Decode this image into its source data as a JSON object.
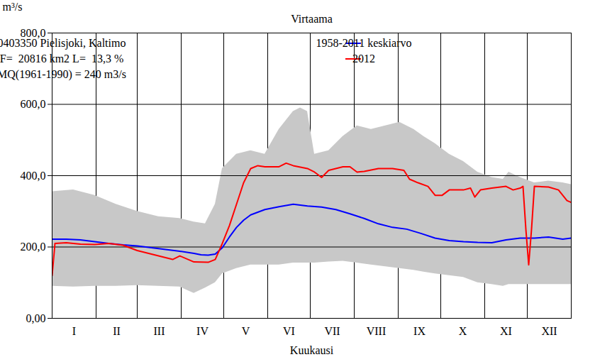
{
  "chart_data": {
    "type": "line",
    "title": "Virtaama",
    "x_label": "Kuukausi",
    "y_label": "m³/s",
    "annotations": [
      "0403350 Pielisjoki, Kaltimo",
      "F=  20816 km2 L=  13,3 %",
      "MQ(1961-1990) = 240 m3/s"
    ],
    "xlim": [
      0,
      366
    ],
    "xticks": [
      {
        "value": 15.5,
        "label": "I"
      },
      {
        "value": 45.5,
        "label": "II"
      },
      {
        "value": 75.5,
        "label": "III"
      },
      {
        "value": 106,
        "label": "IV"
      },
      {
        "value": 136.5,
        "label": "V"
      },
      {
        "value": 167,
        "label": "VI"
      },
      {
        "value": 197.5,
        "label": "VII"
      },
      {
        "value": 228.5,
        "label": "VIII"
      },
      {
        "value": 259,
        "label": "IX"
      },
      {
        "value": 289.5,
        "label": "X"
      },
      {
        "value": 320,
        "label": "XI"
      },
      {
        "value": 350.5,
        "label": "XII"
      }
    ],
    "month_bounds": [
      0,
      31,
      60,
      91,
      121,
      152,
      182,
      213,
      244,
      274,
      305,
      335,
      366
    ],
    "ylim": [
      0,
      800
    ],
    "yticks": [
      {
        "value": 0,
        "label": "0,00"
      },
      {
        "value": 200,
        "label": "200,0"
      },
      {
        "value": 400,
        "label": "400,0"
      },
      {
        "value": 600,
        "label": "600,0"
      },
      {
        "value": 800,
        "label": "800,0"
      }
    ],
    "grid": true,
    "legend": "top-right",
    "band": {
      "color": "#c8c8c8",
      "x": [
        0,
        15,
        30,
        45,
        60,
        75,
        90,
        100,
        108,
        115,
        120,
        130,
        140,
        150,
        160,
        170,
        175,
        180,
        185,
        195,
        205,
        215,
        225,
        235,
        245,
        255,
        262,
        270,
        280,
        290,
        300,
        310,
        318,
        322,
        330,
        340,
        350,
        360,
        366
      ],
      "lower": [
        90,
        88,
        90,
        90,
        92,
        90,
        88,
        70,
        85,
        100,
        125,
        140,
        150,
        150,
        150,
        155,
        155,
        155,
        155,
        158,
        160,
        155,
        150,
        145,
        140,
        135,
        130,
        125,
        120,
        115,
        100,
        95,
        90,
        95,
        95,
        95,
        95,
        95,
        95
      ],
      "upper": [
        355,
        360,
        345,
        320,
        300,
        285,
        280,
        270,
        265,
        320,
        420,
        460,
        470,
        460,
        530,
        580,
        590,
        580,
        460,
        470,
        510,
        540,
        530,
        540,
        550,
        530,
        510,
        490,
        460,
        440,
        410,
        395,
        390,
        410,
        395,
        380,
        385,
        380,
        375
      ]
    },
    "series": [
      {
        "name": "1958-2011 keskiarvo",
        "color": "#0000ff",
        "x": [
          0,
          10,
          20,
          30,
          40,
          50,
          60,
          70,
          80,
          90,
          100,
          105,
          110,
          115,
          120,
          125,
          130,
          135,
          140,
          150,
          160,
          170,
          180,
          190,
          200,
          210,
          220,
          230,
          240,
          250,
          260,
          270,
          280,
          290,
          300,
          310,
          320,
          330,
          340,
          350,
          360,
          366
        ],
        "values": [
          222,
          222,
          220,
          215,
          210,
          206,
          203,
          198,
          193,
          188,
          182,
          178,
          177,
          180,
          198,
          228,
          255,
          275,
          290,
          305,
          313,
          320,
          315,
          312,
          305,
          293,
          280,
          265,
          255,
          250,
          238,
          225,
          218,
          215,
          213,
          212,
          220,
          225,
          225,
          228,
          222,
          225
        ]
      },
      {
        "name": "2012",
        "color": "#ff0000",
        "x": [
          0,
          2,
          10,
          20,
          30,
          40,
          50,
          60,
          70,
          80,
          85,
          90,
          100,
          110,
          115,
          120,
          125,
          130,
          135,
          140,
          145,
          150,
          160,
          165,
          170,
          180,
          185,
          190,
          195,
          200,
          205,
          210,
          215,
          220,
          230,
          240,
          248,
          252,
          258,
          265,
          270,
          275,
          280,
          290,
          295,
          298,
          302,
          310,
          320,
          325,
          330,
          332,
          334,
          336,
          338,
          340,
          350,
          357,
          363,
          366
        ],
        "values": [
          120,
          210,
          212,
          208,
          207,
          210,
          205,
          190,
          180,
          170,
          165,
          175,
          158,
          157,
          165,
          210,
          260,
          320,
          380,
          420,
          428,
          425,
          425,
          435,
          428,
          420,
          410,
          395,
          415,
          420,
          425,
          425,
          410,
          412,
          420,
          420,
          415,
          390,
          380,
          370,
          345,
          345,
          360,
          360,
          365,
          340,
          360,
          365,
          370,
          360,
          365,
          370,
          250,
          150,
          250,
          370,
          368,
          360,
          330,
          325
        ]
      }
    ]
  }
}
